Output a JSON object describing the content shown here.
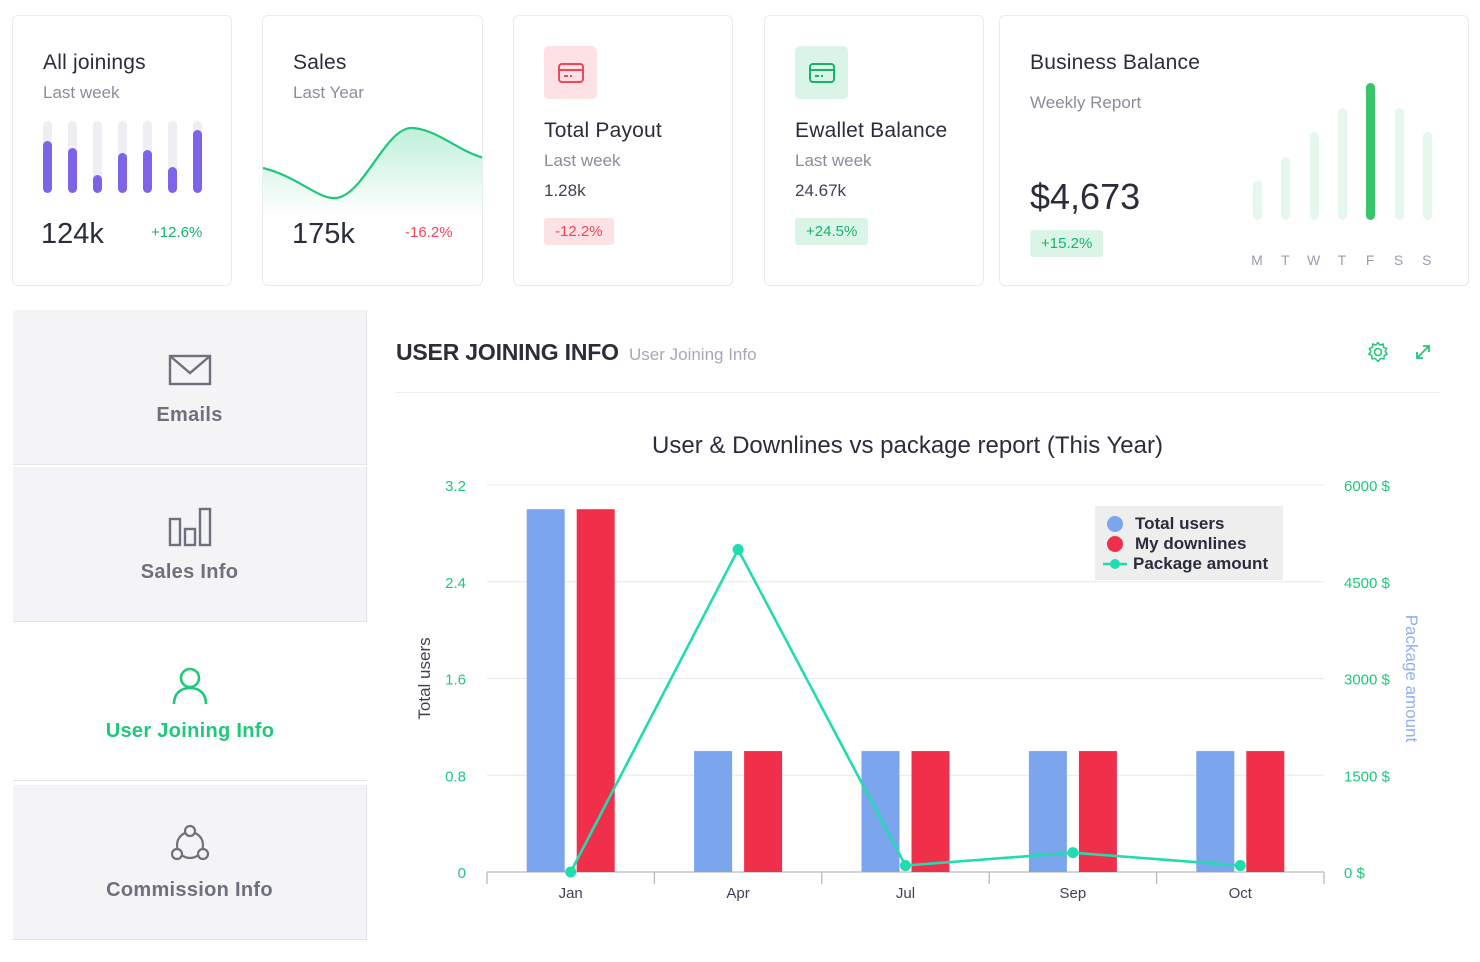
{
  "cards": {
    "joinings": {
      "title": "All joinings",
      "subtitle": "Last week",
      "value": "124k",
      "change": "+12.6%",
      "bars": [
        0.72,
        0.62,
        0.25,
        0.56,
        0.6,
        0.36,
        0.88
      ]
    },
    "sales": {
      "title": "Sales",
      "subtitle": "Last Year",
      "value": "175k",
      "change": "-16.2%"
    },
    "payout": {
      "title": "Total Payout",
      "subtitle": "Last week",
      "value": "1.28k",
      "change": "-12.2%",
      "icon": "card-icon"
    },
    "ewallet": {
      "title": "Ewallet Balance",
      "subtitle": "Last week",
      "value": "24.67k",
      "change": "+24.5%",
      "icon": "card-icon"
    },
    "business": {
      "title": "Business Balance",
      "subtitle": "Weekly Report",
      "value": "$4,673",
      "change": "+15.2%",
      "days": [
        "M",
        "T",
        "W",
        "T",
        "F",
        "S",
        "S"
      ],
      "bars": [
        0.28,
        0.45,
        0.63,
        0.8,
        0.98,
        0.8,
        0.63
      ],
      "highlight_index": 4
    }
  },
  "menu": {
    "items": [
      {
        "label": "Emails",
        "icon": "envelope-icon",
        "active": false
      },
      {
        "label": "Sales Info",
        "icon": "bar-chart-icon",
        "active": false
      },
      {
        "label": "User Joining Info",
        "icon": "user-icon",
        "active": true
      },
      {
        "label": "Commission Info",
        "icon": "network-icon",
        "active": false
      }
    ]
  },
  "panel": {
    "title": "USER JOINING INFO",
    "subtitle": "User Joining Info",
    "tools": [
      "settings-icon",
      "expand-icon"
    ]
  },
  "chart_data": {
    "type": "bar",
    "title": "User & Downlines vs package report (This Year)",
    "categories": [
      "Jan",
      "Apr",
      "Jul",
      "Sep",
      "Oct"
    ],
    "ylabel": "Total users",
    "y2label": "Package amount",
    "ylim": [
      0,
      3.2
    ],
    "yticks": [
      "0",
      "0.8",
      "1.6",
      "2.4",
      "3.2"
    ],
    "y2lim": [
      0,
      6000
    ],
    "y2ticks": [
      "0 $",
      "1500 $",
      "3000 $",
      "4500 $",
      "6000 $"
    ],
    "legend_position": "top-right",
    "series": [
      {
        "name": "Total users",
        "type": "bar",
        "axis": "left",
        "color": "#7ba6ee",
        "values": [
          3,
          1,
          1,
          1,
          1
        ]
      },
      {
        "name": "My downlines",
        "type": "bar",
        "axis": "left",
        "color": "#f0304a",
        "values": [
          3,
          1,
          1,
          1,
          1
        ]
      },
      {
        "name": "Package amount",
        "type": "line",
        "axis": "right",
        "color": "#21dcae",
        "values": [
          0,
          5000,
          100,
          300,
          100
        ]
      }
    ]
  },
  "colors": {
    "accent": "#1fc87a",
    "purple": "#7d63e8",
    "green": "#16b36a",
    "red": "#f0455a"
  }
}
